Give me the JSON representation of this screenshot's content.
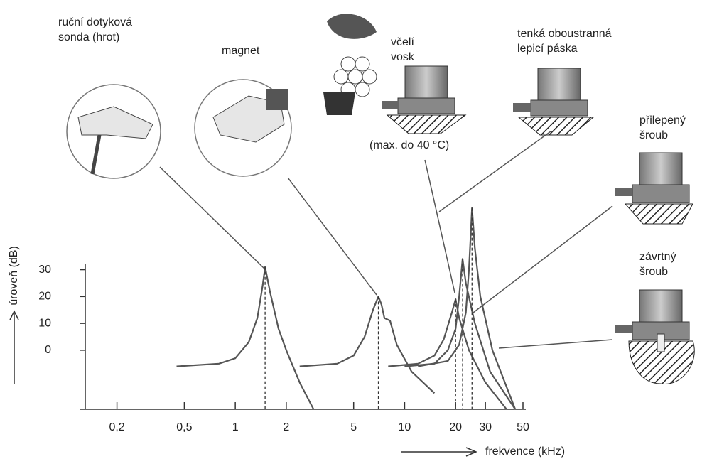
{
  "chart_data": {
    "type": "line",
    "ylabel": "úroveň (dB)",
    "xlabel": "frekvence (kHz)",
    "log_x": true,
    "xlim": [
      0.13,
      50
    ],
    "ylim": [
      -22,
      32
    ],
    "xticks": [
      {
        "value": 0.2,
        "label": "0,2"
      },
      {
        "value": 0.5,
        "label": "0,5"
      },
      1,
      2,
      5,
      10,
      20,
      30,
      50
    ],
    "yticks": [
      0,
      10,
      20,
      30
    ],
    "series": [
      {
        "color": "#555555",
        "x": [
          0.45,
          0.8,
          1.0,
          1.2,
          1.35,
          1.45,
          1.5,
          1.6,
          1.8,
          2.0,
          2.4,
          2.9
        ],
        "values": [
          -6,
          -5,
          -3,
          3,
          12,
          24,
          31,
          22,
          8,
          0,
          -12,
          -22
        ]
      },
      {
        "color": "#555555",
        "x": [
          2.4,
          4,
          5,
          5.8,
          6.5,
          7,
          7.3,
          7.6,
          8.2,
          9,
          11,
          15
        ],
        "values": [
          -6,
          -5,
          -2,
          5,
          15,
          20,
          17,
          12,
          11,
          2,
          -8,
          -16
        ]
      },
      {
        "color": "#555555",
        "x": [
          8,
          12,
          15,
          17,
          19,
          20,
          21,
          24,
          30,
          40
        ],
        "values": [
          -6,
          -5,
          -2,
          4,
          14,
          19,
          12,
          0,
          -12,
          -22
        ]
      },
      {
        "color": "#555555",
        "x": [
          10,
          15,
          18,
          20,
          21,
          22,
          23,
          26,
          32,
          45
        ],
        "values": [
          -6,
          -5,
          0,
          8,
          20,
          34,
          25,
          10,
          -8,
          -22
        ]
      },
      {
        "color": "#555555",
        "x": [
          12,
          18,
          21,
          23,
          24,
          25,
          26,
          28,
          33,
          45
        ],
        "values": [
          -6,
          -4,
          2,
          14,
          30,
          53,
          38,
          20,
          0,
          -22
        ]
      }
    ],
    "annotations": [
      "ruční dotyková sonda (hrot)",
      "magnet",
      "včelí vosk",
      "(max. do 40 °C)",
      "tenká oboustranná lepicí páska",
      "přilepený šroub",
      "závrtný šroub"
    ]
  }
}
